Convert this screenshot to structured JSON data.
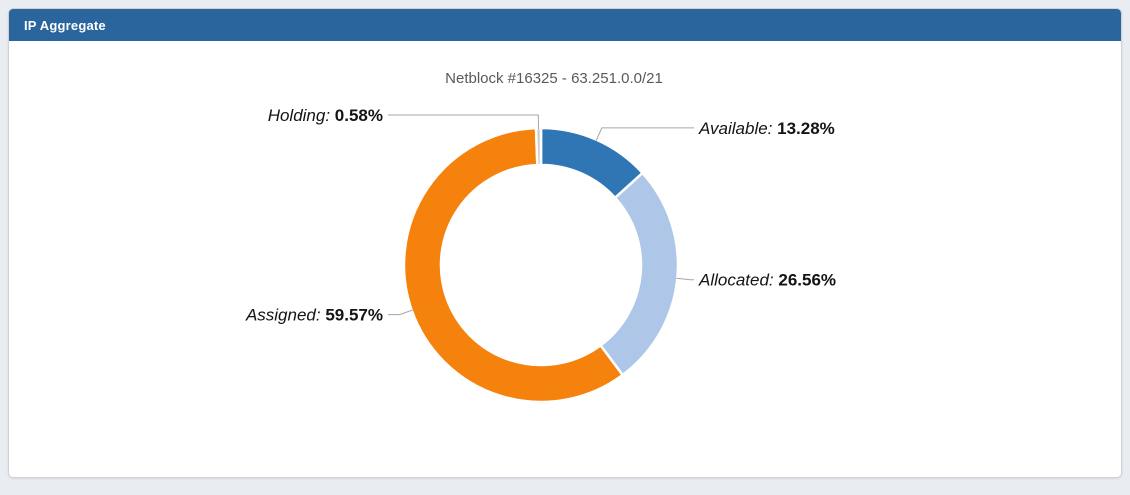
{
  "panel": {
    "header_title": "IP Aggregate"
  },
  "chart_data": {
    "type": "pie",
    "subtype": "donut",
    "title": "Netblock #16325 - 63.251.0.0/21",
    "unit": "%",
    "start_angle_deg": 0,
    "direction": "clockwise-from-top",
    "legend_position": "callout-data-labels",
    "label_format": "{name}: {value}%",
    "segments": [
      {
        "label": "Available",
        "value": 13.28,
        "color": "#3076b4"
      },
      {
        "label": "Allocated",
        "value": 26.56,
        "color": "#aec7e8"
      },
      {
        "label": "Assigned",
        "value": 59.57,
        "color": "#f5820d"
      },
      {
        "label": "Holding",
        "value": 0.58,
        "color": "#cccccc"
      }
    ]
  },
  "colors": {
    "header_bg": "#2b659e",
    "page_bg": "#e9ecf0",
    "panel_bg": "#ffffff",
    "connector": "#a6a6a6",
    "title_text": "#58595b",
    "label_text": "#141414"
  }
}
